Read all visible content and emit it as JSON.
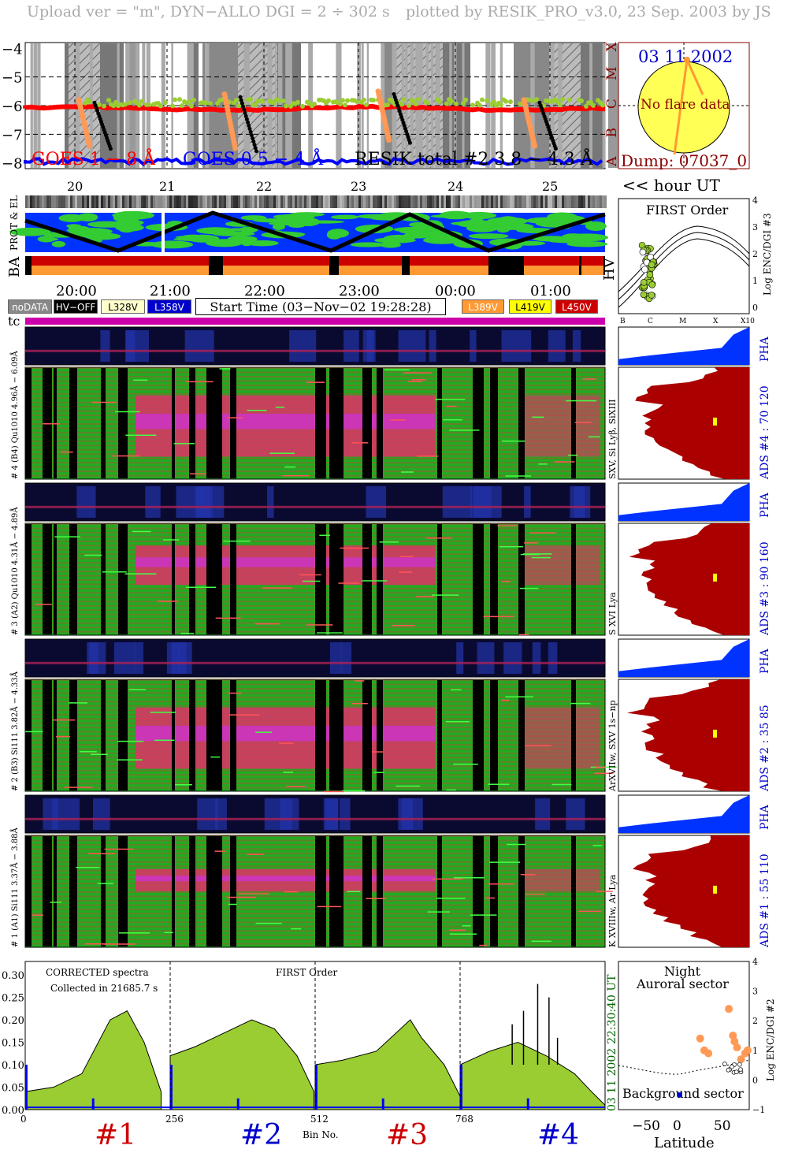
{
  "header": {
    "upload": "Upload ver = \"m\", DYN−ALLO DGI =   2 ÷ 302 s",
    "plotted": "plotted by RESIK_PRO_v3.0, 23 Sep. 2003 by JS"
  },
  "goes": {
    "yticks": [
      "−4",
      "−5",
      "−6",
      "−7",
      "−8"
    ],
    "classes": [
      "X",
      "M",
      "C",
      "B",
      "A"
    ],
    "day_labels": [
      "20",
      "21",
      "22",
      "23",
      "24",
      "25"
    ],
    "legend_goes_long": "GOES 1 − 8 Å",
    "legend_goes_short": "GOES 0.5 − 4 Å",
    "legend_resik": "RESIK total #2  3.8 − 4.3 Å",
    "colors": {
      "goes_long": "#ff0000",
      "goes_short": "#0000ff",
      "resik": "#9acd32"
    }
  },
  "sun": {
    "date": "03 11 2002",
    "text": "No flare data",
    "dump": "Dump: 07037_0"
  },
  "hour_ut": "<< hour UT",
  "side_labels": {
    "prot_el": "PROT & EL",
    "ba": "BA",
    "hv": "HV",
    "tc": "tc"
  },
  "first_order": {
    "title": "FIRST Order",
    "ylabel": "Log ENC/DGI #3",
    "yticks": [
      "0",
      "1",
      "2",
      "3",
      "4"
    ],
    "xticks": [
      "B",
      "C",
      "M",
      "X",
      "X10"
    ]
  },
  "time_axis": [
    "20:00",
    "21:00",
    "22:00",
    "23:00",
    "00:00",
    "01:00"
  ],
  "legend_left": [
    {
      "label": "noDATA",
      "bg": "#888888",
      "fg": "#ffffff"
    },
    {
      "label": "HV−OFF",
      "bg": "#000000",
      "fg": "#ffffff"
    },
    {
      "label": "L328V",
      "bg": "#ffffcc",
      "fg": "#000000"
    },
    {
      "label": "L358V",
      "bg": "#0000cc",
      "fg": "#ffffff"
    }
  ],
  "start_time": "Start Time (03−Nov−02 19:28:28)",
  "legend_right": [
    {
      "label": "L389V",
      "bg": "#ff9933",
      "fg": "#ffffff"
    },
    {
      "label": "L419V",
      "bg": "#ffff00",
      "fg": "#000000"
    },
    {
      "label": "L450V",
      "bg": "#cc0000",
      "fg": "#ffffff"
    }
  ],
  "channels": [
    {
      "pha_label": "# 4 (B4) Qu1010  4.96Å − 6.09Å",
      "ads": "ADS #4 :   70 120",
      "lines": "SXV, Si Lyβ, SiXIII",
      "pha": "PHA"
    },
    {
      "pha_label": "# 3 (A2) Qu1010  4.31Å − 4.89Å",
      "ads": "ADS #3 :   90 160",
      "lines": "S XVI Lya",
      "pha": "PHA"
    },
    {
      "pha_label": "# 2 (B3) Si111  3.82Å − 4.33Å",
      "ads": "ADS #2 :   35  85",
      "lines": "ArXVIIw, SXV 1s−np",
      "pha": "PHA"
    },
    {
      "pha_label": "# 1 (A1) Si111  3.37Å − 3.88Å",
      "ads": "ADS #1 :   55 110",
      "lines": "K XVIIIw, Ar Lya",
      "pha": "PHA"
    }
  ],
  "spectra": {
    "title": "CORRECTED spectra",
    "collected": "Collected in 21685.7 s",
    "order": "FIRST Order",
    "yticks": [
      "0.30",
      "0.25",
      "0.20",
      "0.15",
      "0.10",
      "0.05",
      "0.00"
    ],
    "xticks": [
      "0",
      "256",
      "512",
      "768"
    ],
    "xlabel": "Bin No.",
    "time_label": "22:30:40 UT",
    "date_label": "03 11 2002",
    "channel_labels": [
      {
        "text": "#1",
        "color": "#cc0000"
      },
      {
        "text": "#2",
        "color": "#0000cc"
      },
      {
        "text": "#3",
        "color": "#cc0000"
      },
      {
        "text": "#4",
        "color": "#0000cc"
      }
    ]
  },
  "latitude_plot": {
    "top_label1": "Night",
    "top_label2": "Auroral sector",
    "bottom_label": "Background sector",
    "xlabel": "Latitude",
    "xticks": [
      "−50",
      "0",
      "50"
    ],
    "ylabel": "Log ENC/DGI #2",
    "yticks": [
      "−1",
      "0",
      "1",
      "2",
      "3",
      "4"
    ]
  },
  "chart_data": [
    {
      "type": "line",
      "title": "",
      "ylim": [
        -8.2,
        -3.8
      ],
      "series": [
        {
          "name": "GOES 1 − 8 Å",
          "level_log": -6.1
        },
        {
          "name": "GOES 0.5 − 4 Å",
          "level_log": -8.0
        },
        {
          "name": "RESIK total #2  3.8 − 4.3 Å",
          "level_log": -5.9
        }
      ]
    },
    {
      "type": "area",
      "title": "CORRECTED spectra",
      "xlabel": "Bin No.",
      "xlim": [
        0,
        1024
      ],
      "ylim": [
        0,
        0.33
      ],
      "series": [
        {
          "name": "#1",
          "x": [
            0,
            50,
            100,
            150,
            180,
            210,
            240
          ],
          "values": [
            0.04,
            0.05,
            0.08,
            0.2,
            0.22,
            0.15,
            0.04
          ]
        },
        {
          "name": "#2",
          "x": [
            256,
            300,
            350,
            400,
            440,
            480,
            510
          ],
          "values": [
            0.12,
            0.14,
            0.17,
            0.2,
            0.18,
            0.12,
            0.04
          ]
        },
        {
          "name": "#3",
          "x": [
            512,
            560,
            620,
            680,
            700,
            740,
            768
          ],
          "values": [
            0.1,
            0.11,
            0.13,
            0.2,
            0.16,
            0.1,
            0.03
          ]
        },
        {
          "name": "#4",
          "x": [
            768,
            820,
            870,
            920,
            970,
            1000,
            1024
          ],
          "values": [
            0.1,
            0.13,
            0.15,
            0.12,
            0.08,
            0.04,
            0.01
          ]
        }
      ]
    },
    {
      "type": "scatter",
      "xlabel": "Latitude",
      "ylabel": "Log ENC/DGI #2",
      "xlim": [
        -80,
        80
      ],
      "ylim": [
        -1,
        4
      ],
      "series": [
        {
          "name": "Auroral sector",
          "x": [
            20,
            25,
            30,
            55,
            60,
            62,
            65,
            70,
            75,
            78
          ],
          "values": [
            1.4,
            1.0,
            0.9,
            2.4,
            1.5,
            1.3,
            1.1,
            0.7,
            0.9,
            1.0
          ]
        },
        {
          "name": "Background sector",
          "x": [
            -5
          ],
          "values": [
            -0.5
          ]
        }
      ]
    }
  ]
}
